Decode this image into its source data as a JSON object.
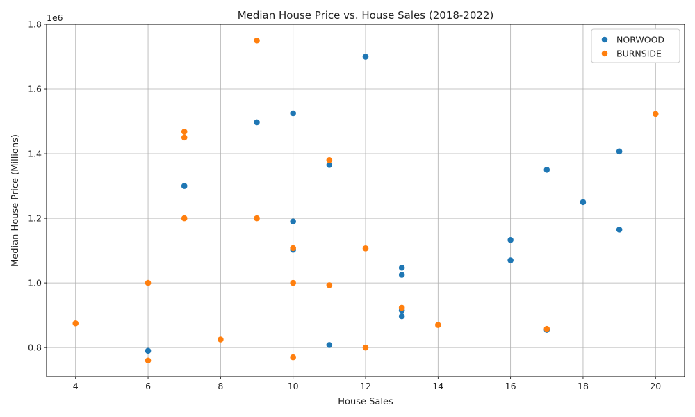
{
  "chart_data": {
    "type": "scatter",
    "title": "Median House Price vs. House Sales (2018-2022)",
    "xlabel": "House Sales",
    "ylabel": "Median House Price (Millions)",
    "offset_text": "1e6",
    "xlim": [
      3.2,
      20.8
    ],
    "ylim": [
      710000,
      1800000
    ],
    "xticks": [
      4,
      6,
      8,
      10,
      12,
      14,
      16,
      18,
      20
    ],
    "yticks": [
      800000,
      1000000,
      1200000,
      1400000,
      1600000,
      1800000
    ],
    "ytick_labels": [
      "0.8",
      "1.0",
      "1.2",
      "1.4",
      "1.6",
      "1.8"
    ],
    "grid": true,
    "legend_position": "top-right",
    "series": [
      {
        "name": "NORWOOD",
        "color": "#1f77b4",
        "points": [
          [
            12,
            1700000
          ],
          [
            10,
            1525000
          ],
          [
            9,
            1497000
          ],
          [
            19,
            1407000
          ],
          [
            11,
            1365000
          ],
          [
            17,
            1350000
          ],
          [
            7,
            1300000
          ],
          [
            18,
            1250000
          ],
          [
            10,
            1190000
          ],
          [
            19,
            1165000
          ],
          [
            16,
            1133000
          ],
          [
            10,
            1103000
          ],
          [
            16,
            1070000
          ],
          [
            13,
            1047000
          ],
          [
            13,
            1025000
          ],
          [
            13,
            915000
          ],
          [
            13,
            897000
          ],
          [
            17,
            855000
          ],
          [
            11,
            808000
          ],
          [
            6,
            790000
          ]
        ]
      },
      {
        "name": "BURNSIDE",
        "color": "#ff7f0e",
        "points": [
          [
            9,
            1750000
          ],
          [
            20,
            1523000
          ],
          [
            7,
            1468000
          ],
          [
            7,
            1450000
          ],
          [
            11,
            1380000
          ],
          [
            7,
            1200000
          ],
          [
            9,
            1200000
          ],
          [
            10,
            1108000
          ],
          [
            12,
            1107000
          ],
          [
            6,
            1000000
          ],
          [
            10,
            1000000
          ],
          [
            11,
            993000
          ],
          [
            13,
            923000
          ],
          [
            4,
            875000
          ],
          [
            14,
            870000
          ],
          [
            17,
            858000
          ],
          [
            8,
            825000
          ],
          [
            12,
            800000
          ],
          [
            10,
            770000
          ],
          [
            6,
            760000
          ]
        ]
      }
    ]
  }
}
